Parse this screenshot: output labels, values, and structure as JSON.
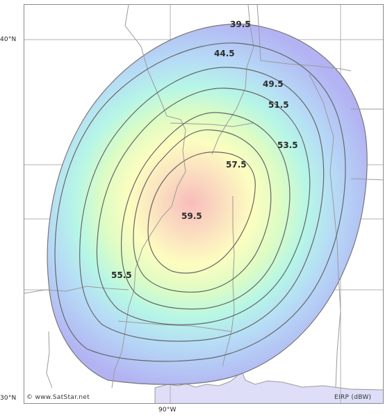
{
  "axes": {
    "latitude_labels": [
      "40°N",
      "30°N"
    ],
    "longitude_labels": [
      "90°W"
    ]
  },
  "contours": [
    {
      "value": "39.5"
    },
    {
      "value": "44.5"
    },
    {
      "value": "49.5"
    },
    {
      "value": "51.5"
    },
    {
      "value": "53.5"
    },
    {
      "value": "55.5"
    },
    {
      "value": "57.5"
    },
    {
      "value": "59.5"
    }
  ],
  "footer": {
    "copyright": "© www.SatStar.net",
    "units": "EIRP (dBW)"
  },
  "colors": {
    "outer": "#b7b7f5",
    "mid": "#b9f2e7",
    "center": "#f8c8c8",
    "water": "#dedef8",
    "contour_line": "#666666",
    "grid": "#b0b0b0",
    "borders": "#9a9a9a"
  }
}
